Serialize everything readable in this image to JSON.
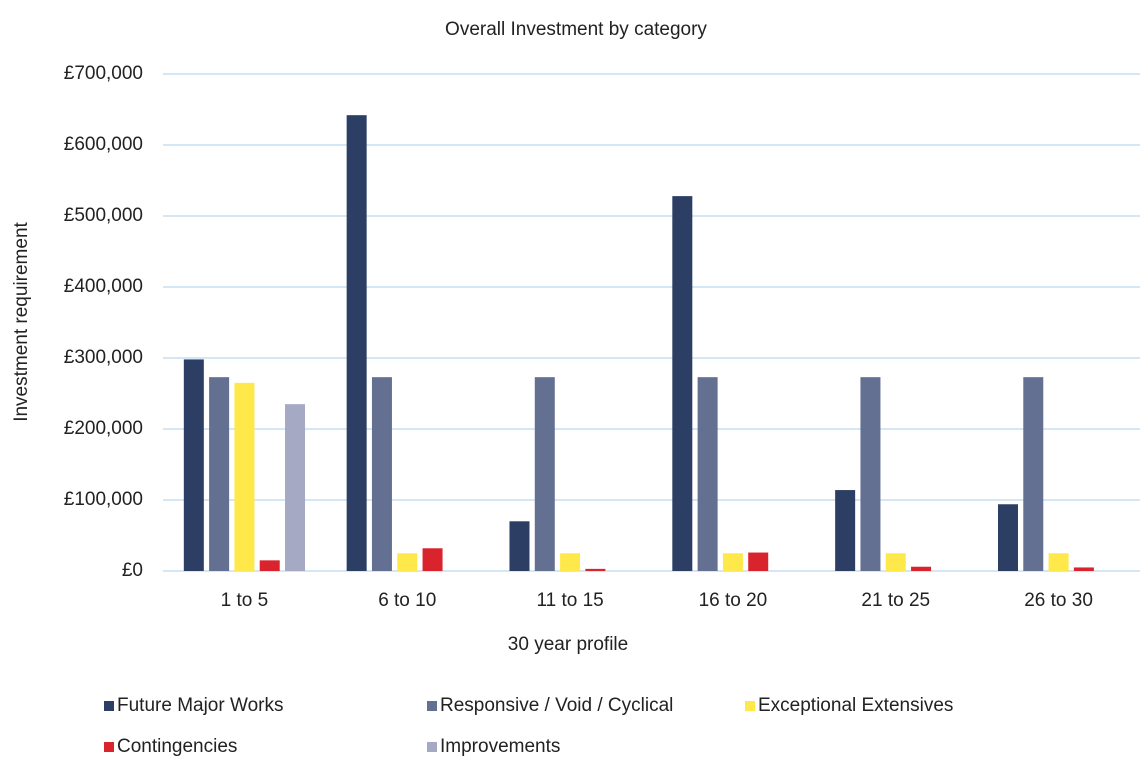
{
  "chart_data": {
    "type": "bar",
    "title": "Overall Investment by category",
    "x_label": "30 year profile",
    "y_label": "Investment requirement",
    "categories": [
      "1 to 5",
      "6 to 10",
      "11 to 15",
      "16 to 20",
      "21 to 25",
      "26 to 30"
    ],
    "series": [
      {
        "name": "Future Major Works",
        "color": "#2c3e63",
        "values": [
          298000,
          642000,
          70000,
          528000,
          114000,
          94000
        ]
      },
      {
        "name": "Responsive / Void / Cyclical",
        "color": "#647092",
        "values": [
          273000,
          273000,
          273000,
          273000,
          273000,
          273000
        ]
      },
      {
        "name": "Exceptional Extensives",
        "color": "#ffe84a",
        "values": [
          265000,
          25000,
          25000,
          25000,
          25000,
          25000
        ]
      },
      {
        "name": "Contingencies",
        "color": "#d9232d",
        "values": [
          15000,
          32000,
          3000,
          26000,
          6000,
          5000
        ]
      },
      {
        "name": "Improvements",
        "color": "#a6a9c4",
        "values": [
          235000,
          0,
          0,
          0,
          0,
          0
        ]
      }
    ],
    "ylim": [
      0,
      700000
    ],
    "yticks": [
      {
        "value": 0,
        "label": "£0"
      },
      {
        "value": 100000,
        "label": "£100,000"
      },
      {
        "value": 200000,
        "label": "£200,000"
      },
      {
        "value": 300000,
        "label": "£300,000"
      },
      {
        "value": 400000,
        "label": "£400,000"
      },
      {
        "value": 500000,
        "label": "£500,000"
      },
      {
        "value": 600000,
        "label": "£600,000"
      },
      {
        "value": 700000,
        "label": "£700,000"
      }
    ],
    "grid": true,
    "legend_position": "bottom"
  }
}
